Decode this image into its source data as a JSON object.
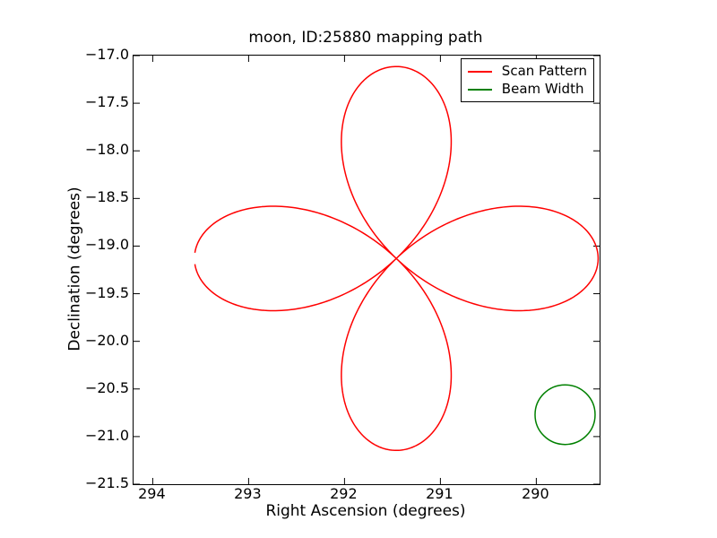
{
  "figure": {
    "background": "#ffffff",
    "frame_color": "#000000",
    "tick_color": "#000000"
  },
  "chart_data": {
    "type": "line",
    "title": "moon, ID:25880 mapping path",
    "xlabel": "Right Ascension (degrees)",
    "ylabel": "Declination (degrees)",
    "x_axis_inverted": true,
    "xlim": [
      294.2,
      289.34
    ],
    "ylim": [
      -17.0,
      -21.5
    ],
    "grid": false,
    "xticks": {
      "values": [
        294,
        293,
        292,
        291,
        290
      ],
      "labels": [
        "294",
        "293",
        "292",
        "291",
        "290"
      ]
    },
    "yticks": {
      "values": [
        -17.0,
        -17.5,
        -18.0,
        -18.5,
        -19.0,
        -19.5,
        -20.0,
        -20.5,
        -21.0,
        -21.5
      ],
      "labels": [
        "−17.0",
        "−17.5",
        "−18.0",
        "−18.5",
        "−19.0",
        "−19.5",
        "−20.0",
        "−20.5",
        "−21.0",
        "−21.5"
      ]
    },
    "legend": {
      "position": "upper right",
      "entries": [
        {
          "label": "Scan Pattern",
          "color": "#ff0000"
        },
        {
          "label": "Beam Width",
          "color": "#008000"
        }
      ]
    },
    "series": [
      {
        "name": "Scan Pattern",
        "color": "#ff0000",
        "shape": "rose",
        "petals": 4,
        "center_ra": 291.46,
        "center_dec": -19.13,
        "amplitude_ra_deg": 2.105,
        "amplitude_dec_deg": 2.015,
        "start_gap_rad": 0.03,
        "linewidth": 1.5
      },
      {
        "name": "Beam Width",
        "color": "#008000",
        "shape": "circle",
        "center_ra": 289.7,
        "center_dec": -20.77,
        "radius_deg": 0.313,
        "linewidth": 1.5
      }
    ]
  }
}
